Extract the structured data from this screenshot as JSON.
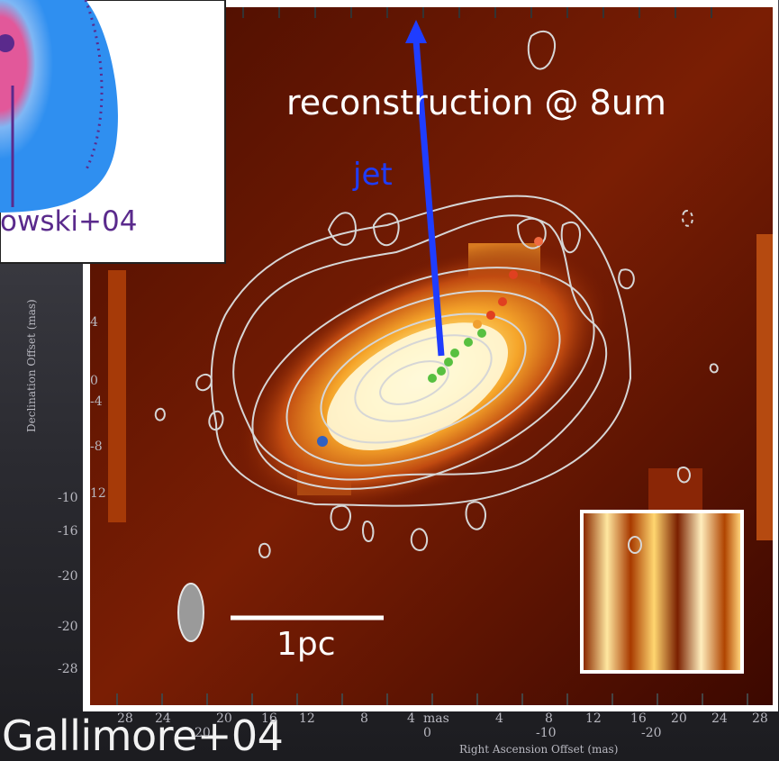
{
  "labels": {
    "reconstruction": "reconstruction @ 8um",
    "jet": "jet",
    "scale_bar": "1pc",
    "credit": "Gallimore+04",
    "inset_author": "owski+04"
  },
  "axes": {
    "x_title": "Right Ascension Offset (mas)",
    "y_title": "Declination Offset (mas)",
    "x_ticks_top": [
      "28",
      "24",
      "20",
      "16",
      "12",
      "8",
      "4",
      "mas",
      "4",
      "8",
      "12",
      "16",
      "20",
      "24",
      "28"
    ],
    "x_ticks_bottom": [
      "20",
      "0",
      "-10",
      "-20"
    ],
    "y_ticks_outer": [
      "-10",
      "-16",
      "-20",
      "-20",
      "-28"
    ],
    "y_ticks_inner": [
      "4",
      "0",
      "-4",
      "-8",
      "12"
    ]
  },
  "colors": {
    "jet_arrow": "#1f3dff",
    "inset_disk": "#2f8ff0",
    "inset_core": "#e0408a",
    "contours": "#cfcfcf",
    "map_bright": "#fff6c8",
    "map_dark": "#3a0a00"
  }
}
